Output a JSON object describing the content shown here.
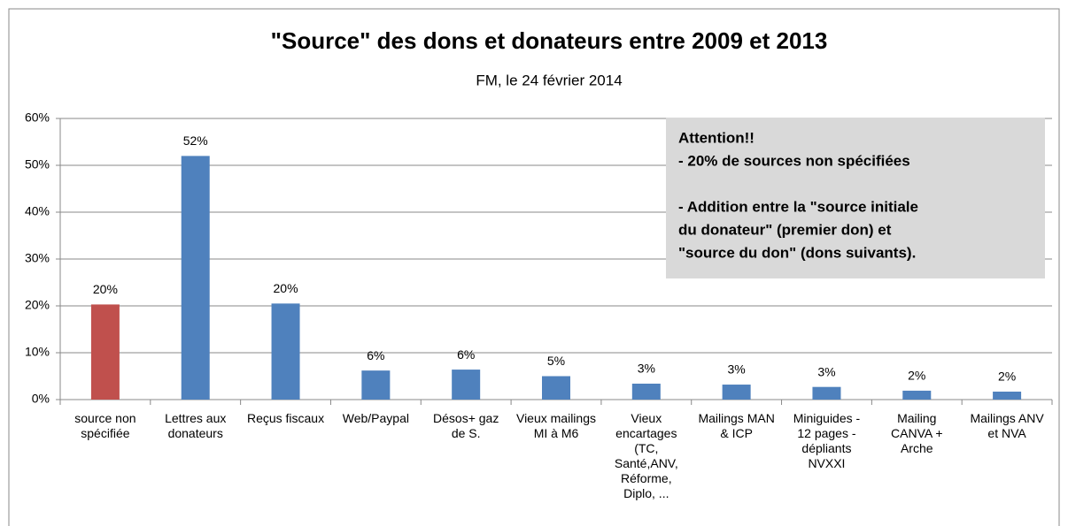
{
  "chart_data": {
    "type": "bar",
    "title": "\"Source\"  des dons et donateurs  entre 2009 et 2013",
    "subtitle": "FM, le 24 février 2014",
    "categories": [
      [
        "source non",
        "spécifiée"
      ],
      [
        "Lettres aux",
        "donateurs"
      ],
      [
        "Reçus fiscaux"
      ],
      [
        "Web/Paypal"
      ],
      [
        "Désos+ gaz",
        "de S."
      ],
      [
        "Vieux mailings",
        "MI à M6"
      ],
      [
        "Vieux",
        "encartages",
        "(TC,",
        "Santé,ANV,",
        "Réforme,",
        "Diplo, ..."
      ],
      [
        "Mailings MAN",
        "& ICP"
      ],
      [
        "Miniguides -",
        "12 pages -",
        "dépliants",
        "NVXXI"
      ],
      [
        "Mailing",
        "CANVA +",
        "Arche"
      ],
      [
        "Mailings ANV",
        "et NVA"
      ]
    ],
    "values": [
      20.3,
      52,
      20.5,
      6.2,
      6.4,
      5,
      3.4,
      3.2,
      2.7,
      1.9,
      1.7
    ],
    "value_labels": [
      "20%",
      "52%",
      "20%",
      "6%",
      "6%",
      "5%",
      "3%",
      "3%",
      "3%",
      "2%",
      "2%"
    ],
    "colors": [
      "#c0504d",
      "#4f81bd",
      "#4f81bd",
      "#4f81bd",
      "#4f81bd",
      "#4f81bd",
      "#4f81bd",
      "#4f81bd",
      "#4f81bd",
      "#4f81bd",
      "#4f81bd"
    ],
    "ylim": [
      0,
      60
    ],
    "yticks": [
      {
        "value": 0,
        "label": "0%"
      },
      {
        "value": 10,
        "label": "10%"
      },
      {
        "value": 20,
        "label": "20%"
      },
      {
        "value": 30,
        "label": "30%"
      },
      {
        "value": 40,
        "label": "40%"
      },
      {
        "value": 50,
        "label": "50%"
      },
      {
        "value": 60,
        "label": "60%"
      }
    ],
    "grid": true,
    "annotation": {
      "paragraphs": [
        [
          "Attention!!",
          "- 20% de sources non spécifiées"
        ],
        [
          "- Addition entre la \"source initiale",
          "du donateur\" (premier don) et",
          "\"source du don\" (dons suivants)."
        ]
      ]
    }
  }
}
